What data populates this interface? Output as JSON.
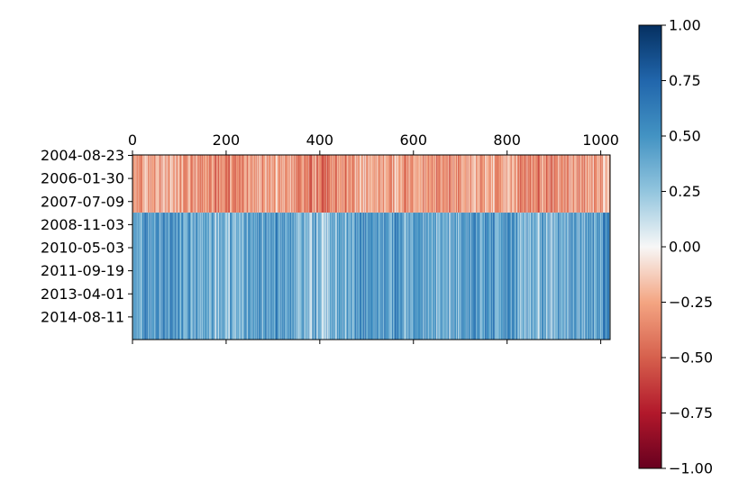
{
  "chart_data": {
    "type": "heatmap",
    "title": "",
    "xlabel": "",
    "ylabel": "",
    "x_ticks": [
      "0",
      "200",
      "400",
      "600",
      "800",
      "1000"
    ],
    "x_tick_values": [
      0,
      200,
      400,
      600,
      800,
      1000
    ],
    "xlim": [
      0,
      1020
    ],
    "x_tick_position": "top-and-bottom",
    "y_ticks": [
      "2004-08-23",
      "2006-01-30",
      "2007-07-09",
      "2008-11-03",
      "2010-05-03",
      "2011-09-19",
      "2013-04-01",
      "2014-08-11"
    ],
    "row_count": 8,
    "colormap": "RdBu",
    "colorbar": {
      "ticks": [
        "1.00",
        "0.75",
        "0.50",
        "0.25",
        "0.00",
        "−0.25",
        "−0.50",
        "−0.75",
        "−1.00"
      ],
      "tick_values": [
        1.0,
        0.75,
        0.5,
        0.25,
        0.0,
        -0.25,
        -0.5,
        -0.75,
        -1.0
      ],
      "range": [
        -1.0,
        1.0
      ],
      "placement": "right"
    },
    "pattern_note": "Rows 2004-08-23 through 2007-07-09 mostly negative (red, about -0.3); rows 2008-11-03 onward mostly positive (blue, about 0.4); individual columns vary strongly.",
    "top_band_mean": -0.3,
    "bottom_band_mean": 0.4,
    "split_row": 2.5,
    "colors": {
      "strong_negative": "#67001f",
      "negative": "#d6604d",
      "neutral": "#f7f7f7",
      "positive": "#4393c3",
      "strong_positive": "#053061"
    }
  }
}
